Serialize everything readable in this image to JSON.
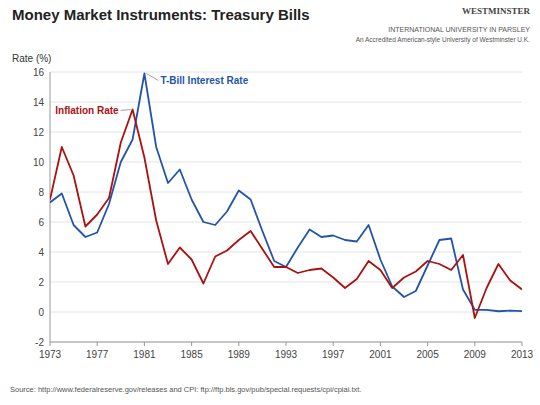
{
  "chart_data": {
    "type": "line",
    "title": "Money Market Instruments: Treasury Bills",
    "y_label": "Rate (%)",
    "annotations": [
      "WESTMINSTER",
      "INTERNATIONAL UNIVERSITY IN PARSLEY",
      "An Accredited American-style University of Westminster U.K.",
      "Source: http://www.federalreserve.gov/releases and CPI: ftp://ftp.bls.gov/pub/special.requests/cpi/cpiai.txt."
    ],
    "x": [
      1973,
      1974,
      1975,
      1976,
      1977,
      1978,
      1979,
      1980,
      1981,
      1982,
      1983,
      1984,
      1985,
      1986,
      1987,
      1988,
      1989,
      1990,
      1991,
      1992,
      1993,
      1994,
      1995,
      1996,
      1997,
      1998,
      1999,
      2000,
      2001,
      2002,
      2003,
      2004,
      2005,
      2006,
      2007,
      2008,
      2009,
      2010,
      2011,
      2012,
      2013
    ],
    "series": [
      {
        "name": "T-Bill Interest Rate",
        "color": "#2255aa",
        "values": [
          7.3,
          7.9,
          5.8,
          5.0,
          5.3,
          7.2,
          10.0,
          11.5,
          15.9,
          11.0,
          8.6,
          9.5,
          7.5,
          6.0,
          5.8,
          6.7,
          8.1,
          7.5,
          5.4,
          3.4,
          3.0,
          4.3,
          5.5,
          5.0,
          5.1,
          4.8,
          4.7,
          5.8,
          3.5,
          1.7,
          1.0,
          1.4,
          3.1,
          4.8,
          4.9,
          1.5,
          0.15,
          0.14,
          0.05,
          0.09,
          0.06
        ]
      },
      {
        "name": "Inflation Rate",
        "color": "#aa1111",
        "values": [
          7.5,
          11.0,
          9.1,
          5.7,
          6.5,
          7.6,
          11.3,
          13.5,
          10.3,
          6.1,
          3.2,
          4.3,
          3.5,
          1.9,
          3.7,
          4.1,
          4.8,
          5.4,
          4.2,
          3.0,
          3.0,
          2.6,
          2.8,
          2.9,
          2.3,
          1.6,
          2.2,
          3.4,
          2.8,
          1.6,
          2.3,
          2.7,
          3.4,
          3.2,
          2.8,
          3.8,
          -0.4,
          1.6,
          3.2,
          2.1,
          1.5
        ]
      }
    ],
    "xlim": [
      1973,
      2013
    ],
    "xticks": [
      1973,
      1977,
      1981,
      1985,
      1989,
      1993,
      1997,
      2001,
      2005,
      2009,
      2013
    ],
    "ylim": [
      -2,
      16
    ],
    "yticks": [
      -2,
      0,
      2,
      4,
      6,
      8,
      10,
      12,
      14,
      16
    ],
    "grid": true
  }
}
